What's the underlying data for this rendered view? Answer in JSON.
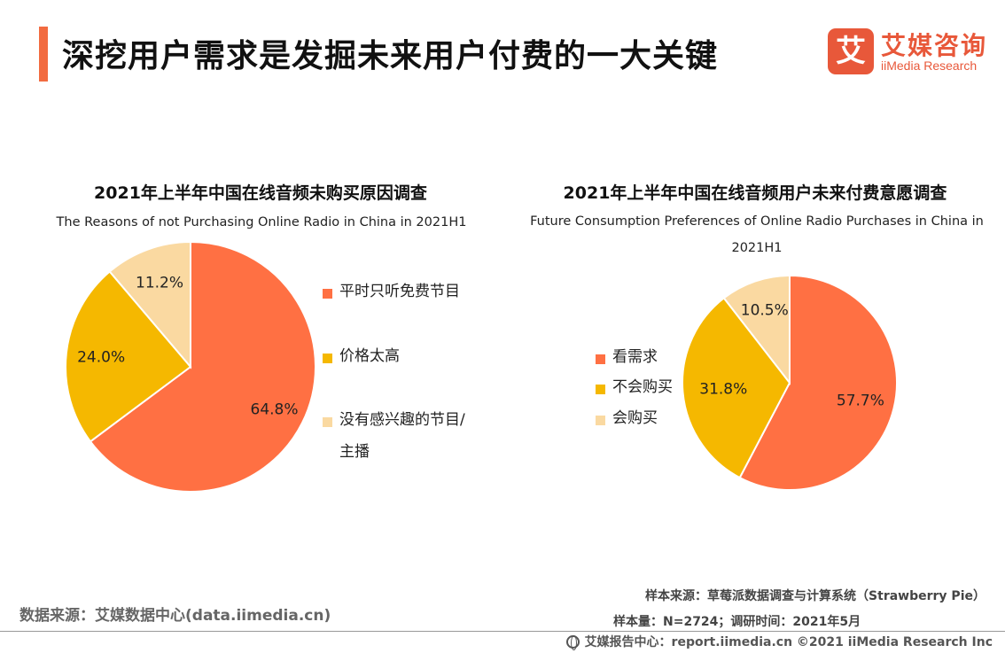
{
  "header": {
    "title": "深挖用户需求是发掘未来用户付费的一大关键",
    "logo": {
      "mark": "艾",
      "cn": "艾媒咨询",
      "en": "iiMedia Research"
    }
  },
  "colors": {
    "accent": "#f26b40",
    "orange": "#ff7043",
    "yellow": "#f5b800",
    "beige": "#fad9a1"
  },
  "chart_data": [
    {
      "type": "pie",
      "title": "2021年上半年中国在线音频未购买原因调查",
      "subtitle": "The Reasons of not Purchasing Online Radio in China in 2021H1",
      "slices": [
        {
          "label": "平时只听免费节目",
          "value": 64.8,
          "display": "64.8%",
          "color": "#ff7043"
        },
        {
          "label": "价格太高",
          "value": 24.0,
          "display": "24.0%",
          "color": "#f5b800"
        },
        {
          "label": "没有感兴趣的节目/主播",
          "value": 11.2,
          "display": "11.2%",
          "color": "#fad9a1"
        }
      ],
      "legend": [
        "平时只听免费节目",
        "价格太高",
        "没有感兴趣的节目/",
        "主播"
      ]
    },
    {
      "type": "pie",
      "title": "2021年上半年中国在线音频用户未来付费意愿调查",
      "subtitle": "Future Consumption Preferences of Online Radio Purchases in China in 2021H1",
      "slices": [
        {
          "label": "看需求",
          "value": 57.7,
          "display": "57.7%",
          "color": "#ff7043"
        },
        {
          "label": "不会购买",
          "value": 31.8,
          "display": "31.8%",
          "color": "#f5b800"
        },
        {
          "label": "会购买",
          "value": 10.5,
          "display": "10.5%",
          "color": "#fad9a1"
        }
      ],
      "legend": [
        "看需求",
        "不会购买",
        "会购买"
      ]
    }
  ],
  "footer": {
    "data_source": "数据来源：艾媒数据中心(data.iimedia.cn)",
    "sample_source": "样本来源：草莓派数据调查与计算系统（Strawberry Pie）",
    "sample_size": "样本量：N=2724；调研时间：2021年5月",
    "copyright": "艾媒报告中心：report.iimedia.cn  ©2021  iiMedia Research  Inc"
  }
}
